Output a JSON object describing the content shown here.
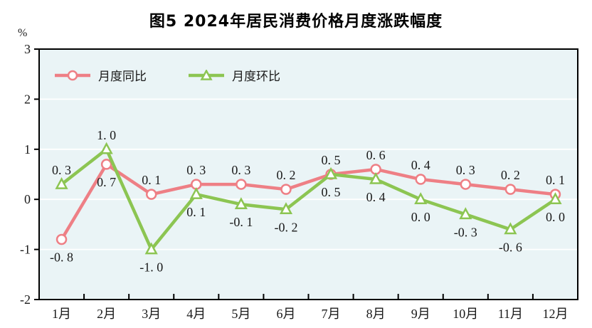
{
  "title": "图5  2024年居民消费价格月度涨跌幅度",
  "unit_label": "%",
  "chart_data": {
    "type": "line",
    "categories": [
      "1月",
      "2月",
      "3月",
      "4月",
      "5月",
      "6月",
      "7月",
      "8月",
      "9月",
      "10月",
      "11月",
      "12月"
    ],
    "series": [
      {
        "name": "月度同比",
        "marker": "circle",
        "color": "#ee7f85",
        "values": [
          -0.8,
          0.7,
          0.1,
          0.3,
          0.3,
          0.2,
          0.5,
          0.6,
          0.4,
          0.3,
          0.2,
          0.1
        ],
        "labels": [
          "-0. 8",
          "0. 7",
          "0. 1",
          "0. 3",
          "0. 3",
          "0. 2",
          "0. 5",
          "0. 6",
          "0. 4",
          "0. 3",
          "0. 2",
          "0. 1"
        ],
        "label_side": [
          "below",
          "below",
          "above",
          "above",
          "above",
          "above",
          "above",
          "above",
          "above",
          "above",
          "above",
          "above"
        ]
      },
      {
        "name": "月度环比",
        "marker": "triangle",
        "color": "#8cc552",
        "values": [
          0.3,
          1.0,
          -1.0,
          0.1,
          -0.1,
          -0.2,
          0.5,
          0.4,
          0.0,
          -0.3,
          -0.6,
          0.0
        ],
        "labels": [
          "0. 3",
          "1. 0",
          "-1. 0",
          "0. 1",
          "-0. 1",
          "-0. 2",
          "0. 5",
          "0. 4",
          "0. 0",
          "-0. 3",
          "-0. 6",
          "0. 0"
        ],
        "label_side": [
          "above",
          "above",
          "below",
          "below",
          "below",
          "below",
          "below",
          "below",
          "below",
          "below",
          "below",
          "below"
        ]
      }
    ],
    "ylabel": "%",
    "ylim": [
      -2,
      3
    ],
    "yticks": [
      3,
      2,
      1,
      0,
      -1,
      -2
    ],
    "grid": true,
    "legend_position": "top-left-inside",
    "colors": {
      "plot_bg": "#eaf4f6",
      "grid": "#ffffff",
      "axis": "#000000",
      "text": "#1a1a1a"
    }
  }
}
